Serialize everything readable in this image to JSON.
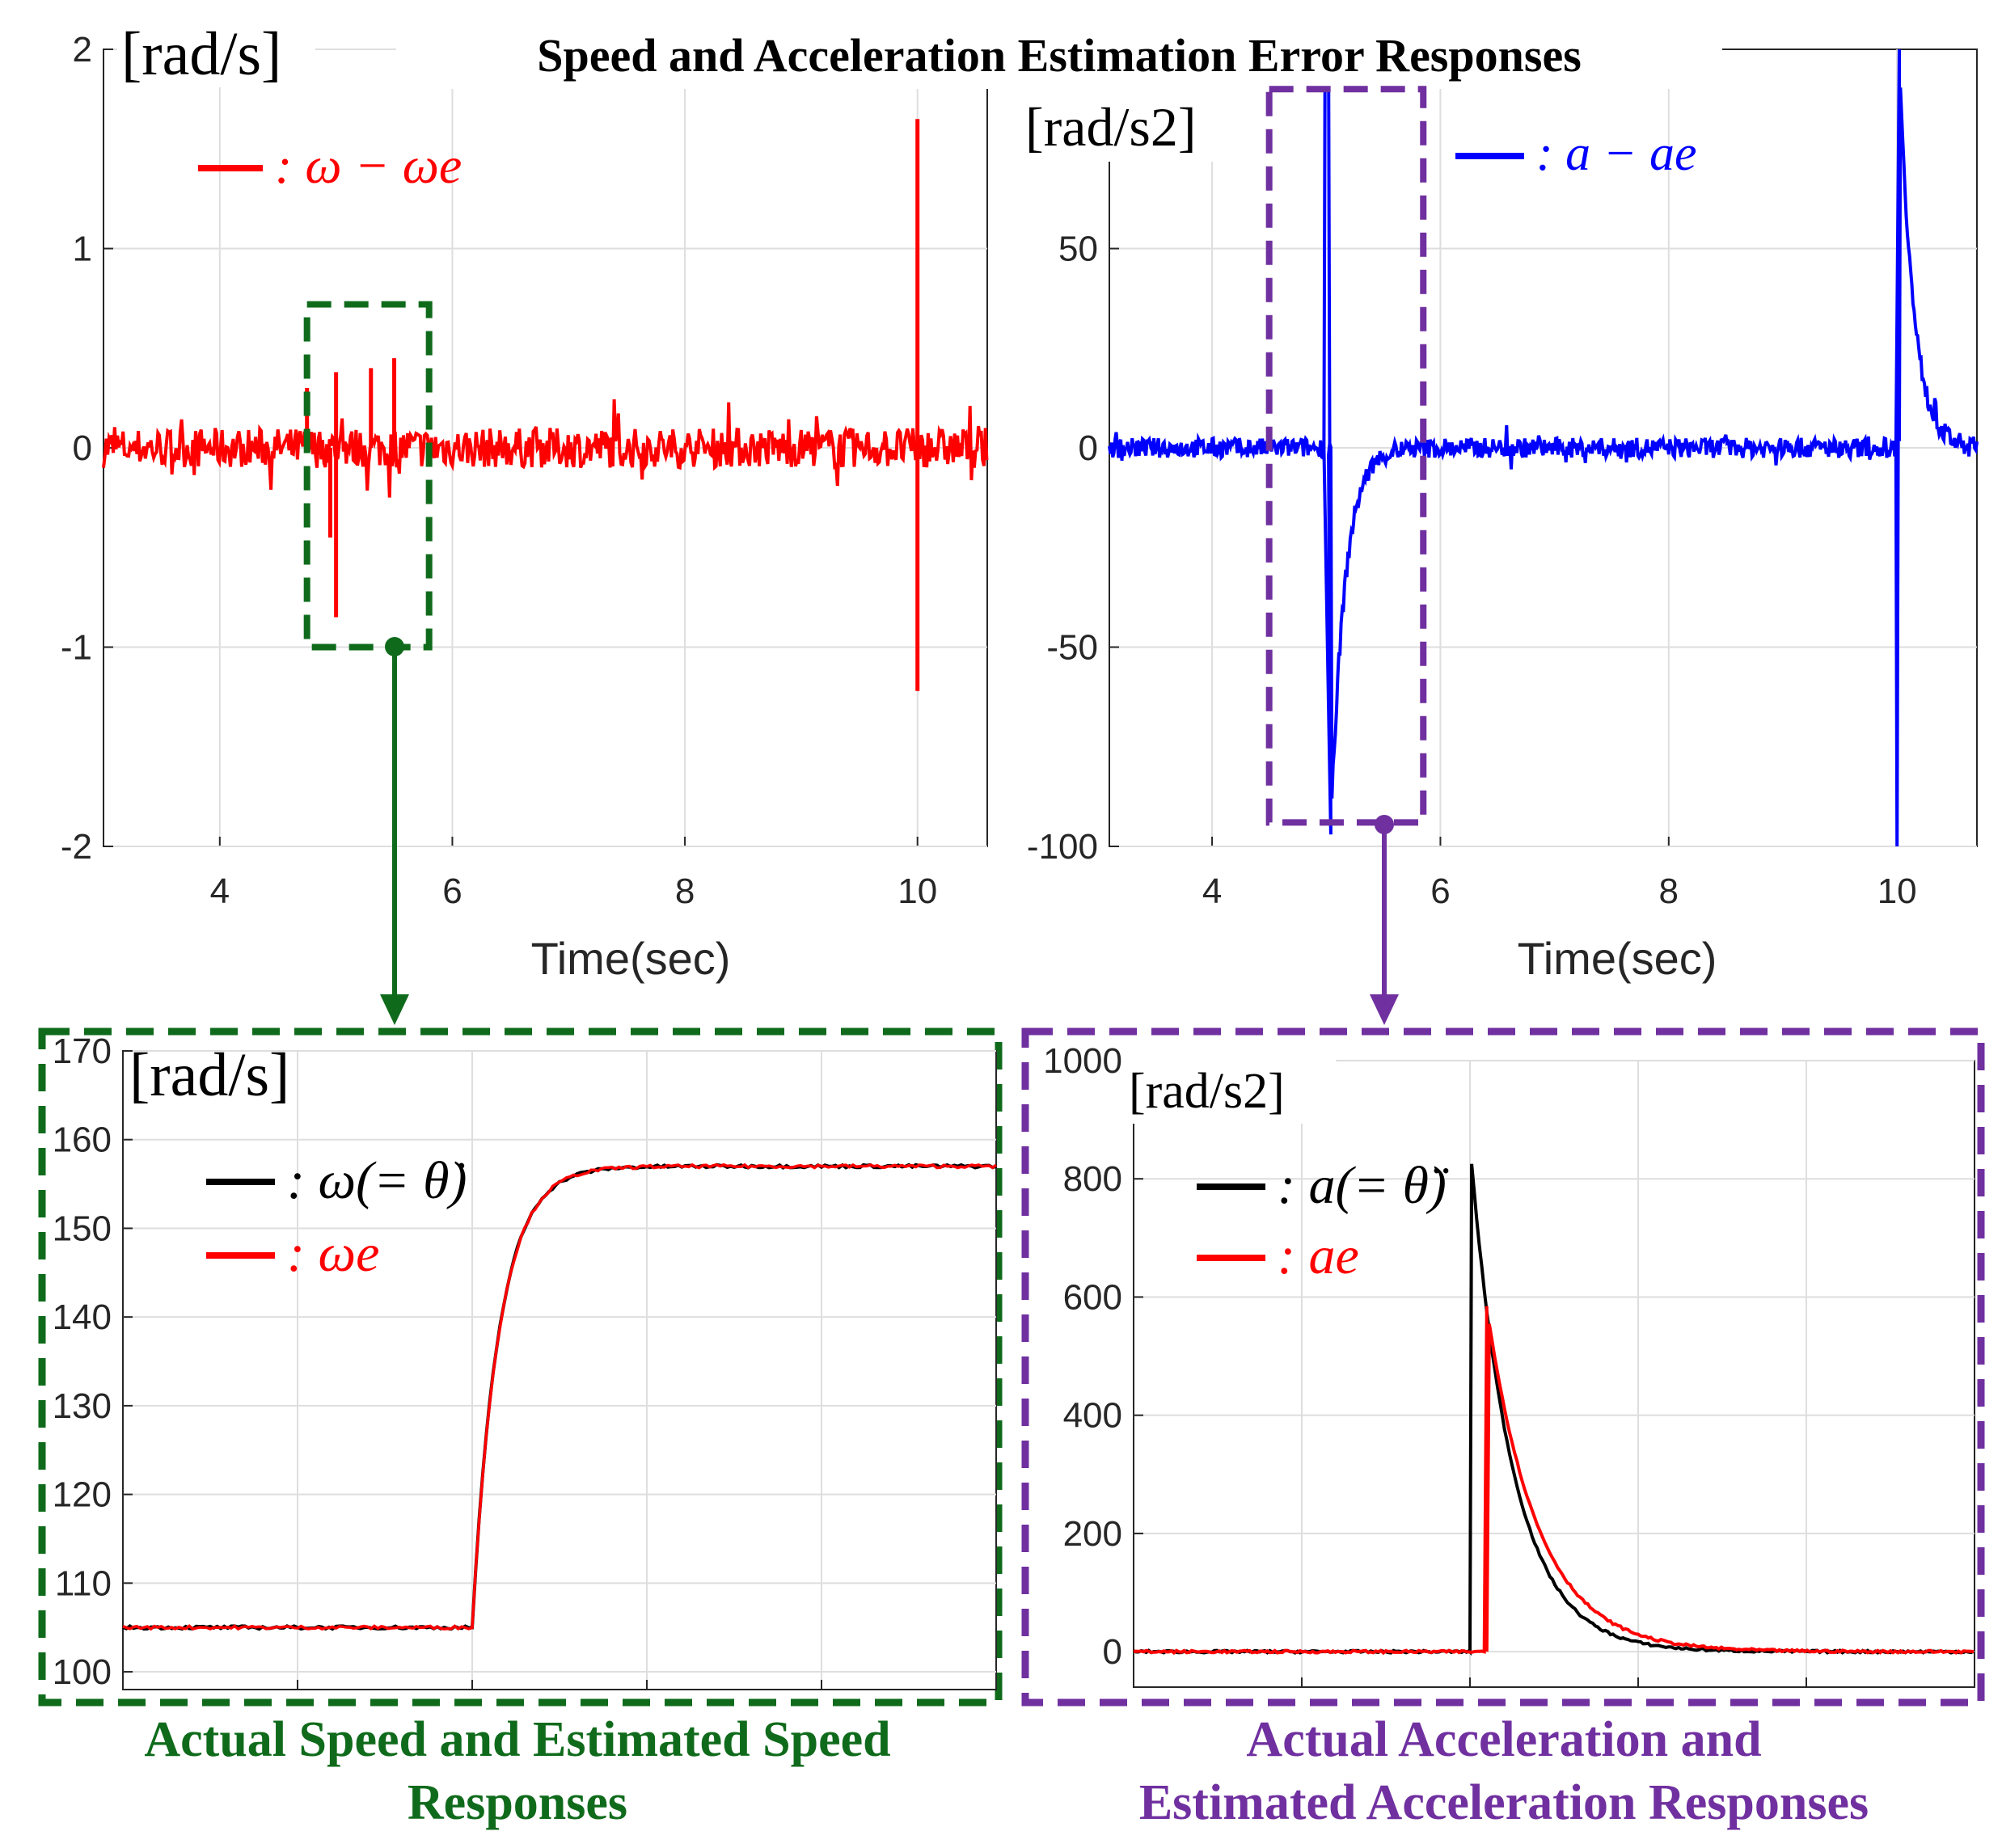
{
  "title": "Speed and Acceleration Estimation Error Responses",
  "colors": {
    "red": "#ff0000",
    "blue": "#0000ff",
    "green": "#0f6b1b",
    "purple": "#7030a0",
    "black": "#000000"
  },
  "chart_data": [
    {
      "id": "speed_error",
      "type": "line",
      "unit_label": "[rad/s]",
      "xlabel": "Time(sec)",
      "xlim": [
        3,
        10.6
      ],
      "ylim": [
        -2,
        2
      ],
      "xticks": [
        4,
        6,
        8,
        10
      ],
      "yticks": [
        -2,
        -1,
        0,
        1,
        2
      ],
      "legend": [
        {
          "label": ": ω − ωe",
          "color": "#ff0000"
        }
      ],
      "series": [
        {
          "name": "ω − ωe",
          "color": "#ff0000",
          "noise": 0.1,
          "spikes": [
            {
              "x": 4.75,
              "y": 0.3
            },
            {
              "x": 4.95,
              "y": -0.45
            },
            {
              "x": 5.0,
              "y": -0.85
            },
            {
              "x": 5.0,
              "y": 0.38
            },
            {
              "x": 5.3,
              "y": 0.4
            },
            {
              "x": 5.5,
              "y": 0.45
            },
            {
              "x": 10.0,
              "y": 1.65
            },
            {
              "x": 10.0,
              "y": -1.22
            }
          ]
        }
      ],
      "zoom_box": {
        "x0": 4.75,
        "x1": 5.8,
        "y0": -1.0,
        "y1": 0.72
      }
    },
    {
      "id": "accel_error",
      "type": "line",
      "unit_label": "[rad/s2]",
      "xlabel": "Time(sec)",
      "xlim": [
        3.1,
        10.7
      ],
      "ylim": [
        -100,
        100
      ],
      "xticks": [
        4,
        6,
        8,
        10
      ],
      "yticks": [
        -100,
        -50,
        0,
        50
      ],
      "legend": [
        {
          "label": ": a − ae",
          "color": "#0000ff"
        }
      ],
      "series": [
        {
          "name": "a − ae",
          "color": "#0000ff",
          "noise": 2.5,
          "events": [
            {
              "t0": 5.0,
              "up": 100,
              "down": -97,
              "tau": 0.12
            },
            {
              "t0": 10.0,
              "up": 100,
              "down": -100,
              "decay_from": 100,
              "tau": 0.12
            }
          ]
        }
      ],
      "zoom_box": {
        "x0": 4.5,
        "x1": 5.85,
        "y0": -94,
        "y1": 90
      }
    },
    {
      "id": "speed_zoom",
      "type": "line",
      "unit_label": "[rad/s]",
      "xlim": [
        4.6,
        5.6
      ],
      "ylim": [
        98,
        170
      ],
      "yticks": [
        100,
        110,
        120,
        130,
        140,
        150,
        160,
        170
      ],
      "legend": [
        {
          "label": ": ω(= θ̇)",
          "color": "#000000"
        },
        {
          "label": ": ωe",
          "color": "#ff0000"
        }
      ],
      "series": [
        {
          "name": "ω",
          "color": "#000000",
          "before": 105,
          "after": 157,
          "t0": 5.0,
          "tau": 0.03
        },
        {
          "name": "ωe",
          "color": "#ff0000",
          "before": 105,
          "after": 157,
          "t0": 5.0,
          "tau": 0.03
        }
      ]
    },
    {
      "id": "accel_zoom",
      "type": "line",
      "unit_label": "[rad/s2]",
      "xlim": [
        4.6,
        5.6
      ],
      "ylim": [
        -60,
        1000
      ],
      "yticks": [
        0,
        200,
        400,
        600,
        800,
        1000
      ],
      "legend": [
        {
          "label": ": a(= θ̈)",
          "color": "#000000"
        },
        {
          "label": ": ae",
          "color": "#ff0000"
        }
      ],
      "series": [
        {
          "name": "a",
          "color": "#000000",
          "t0": 5.0,
          "peak": 860,
          "tau": 0.05
        },
        {
          "name": "ae",
          "color": "#ff0000",
          "t0": 5.02,
          "peak": 585,
          "tau": 0.06
        }
      ]
    }
  ],
  "captions": {
    "speed": [
      "Actual Speed and Estimated Speed",
      "Responses"
    ],
    "accel": [
      "Actual Acceleration and",
      "Estimated Acceleration Responses"
    ]
  }
}
